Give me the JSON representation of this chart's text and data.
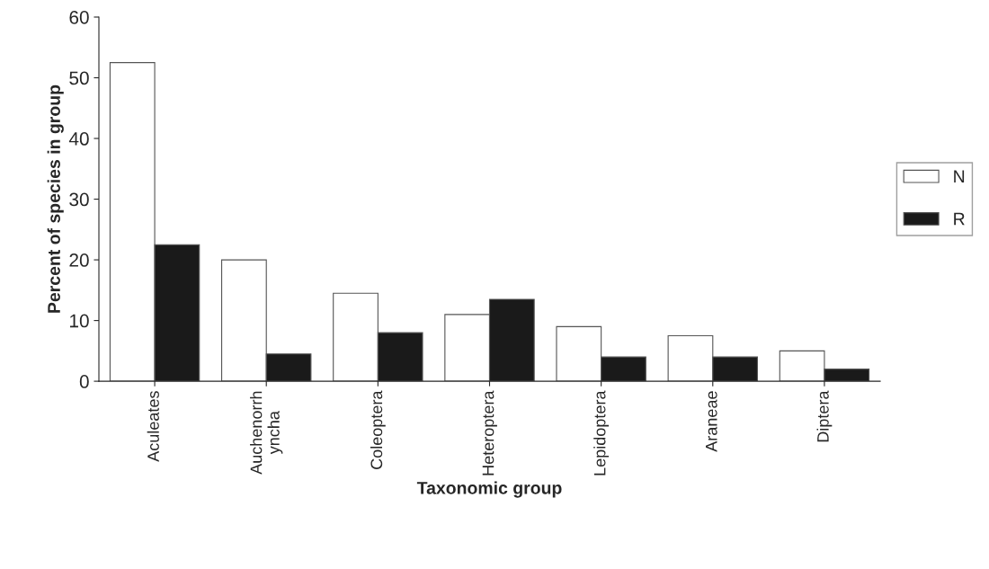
{
  "chart_data": {
    "type": "bar",
    "xlabel": "Taxonomic group",
    "ylabel": "Percent of species in group",
    "categories": [
      "Aculeates",
      "Auchenorrh\nyncha",
      "Coleoptera",
      "Heteroptera",
      "Lepidoptera",
      "Araneae",
      "Diptera"
    ],
    "series": [
      {
        "name": "N",
        "color": "#ffffff",
        "values": [
          52.5,
          20,
          14.5,
          11,
          9,
          7.5,
          5
        ]
      },
      {
        "name": "R",
        "color": "#1a1a1a",
        "values": [
          22.5,
          4.5,
          8,
          13.5,
          4,
          4,
          2
        ]
      }
    ],
    "ylim": [
      0,
      60
    ],
    "yticks": [
      0,
      10,
      20,
      30,
      40,
      50,
      60
    ],
    "grid": false,
    "legend": "right"
  }
}
